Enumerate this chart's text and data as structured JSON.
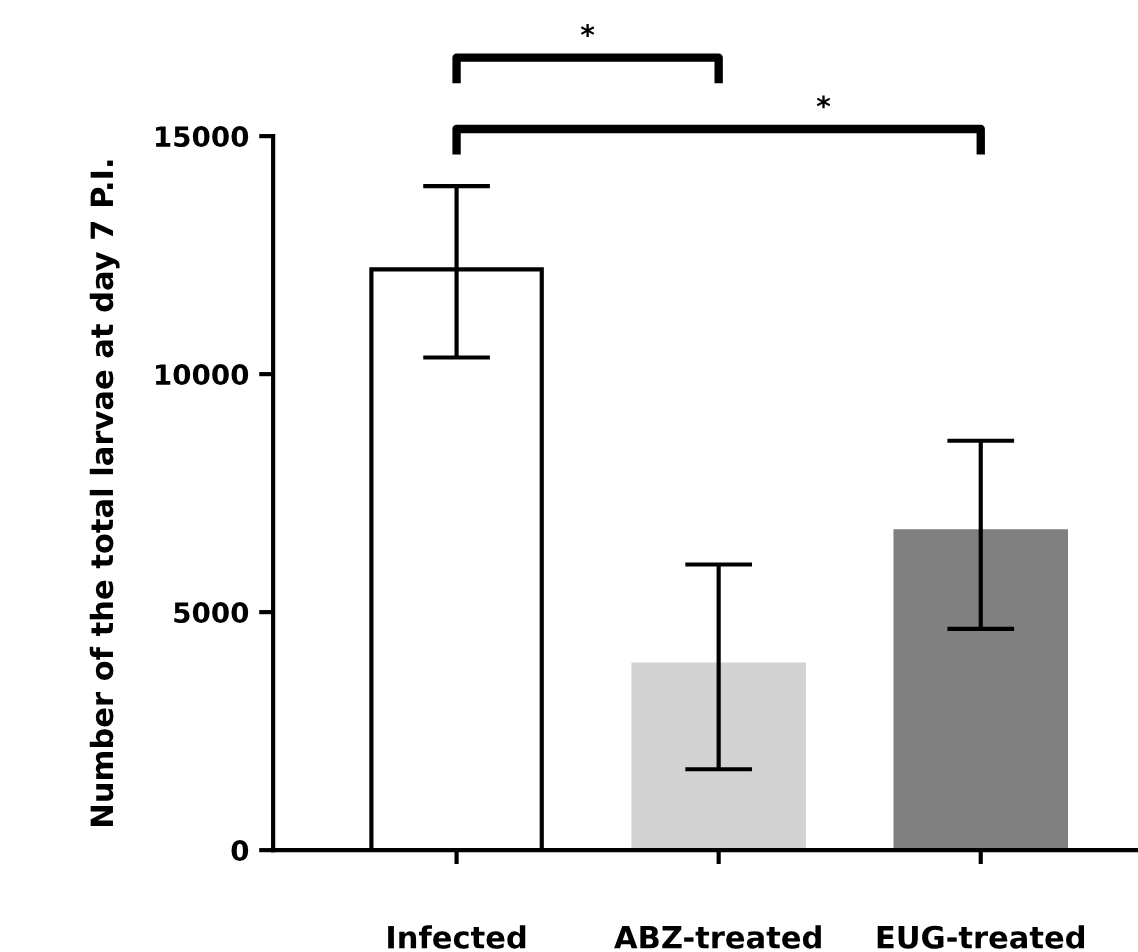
{
  "chart_data": {
    "type": "bar",
    "ylabel": "Number of the total larvae at day 7 P.I.",
    "categories": [
      "Infected",
      "ABZ-treated",
      "EUG-treated"
    ],
    "values": [
      12200,
      3900,
      6700
    ],
    "colors": [
      "#ffffff",
      "#d3d3d3",
      "#808080"
    ],
    "errors": [
      [
        10350,
        13950
      ],
      [
        1700,
        6000
      ],
      [
        4650,
        8600
      ]
    ],
    "ylim": [
      0,
      15000
    ],
    "yticks": [
      0,
      5000,
      10000,
      15000
    ],
    "grid": false,
    "legend": false,
    "annotations": [
      "*",
      "*"
    ]
  }
}
